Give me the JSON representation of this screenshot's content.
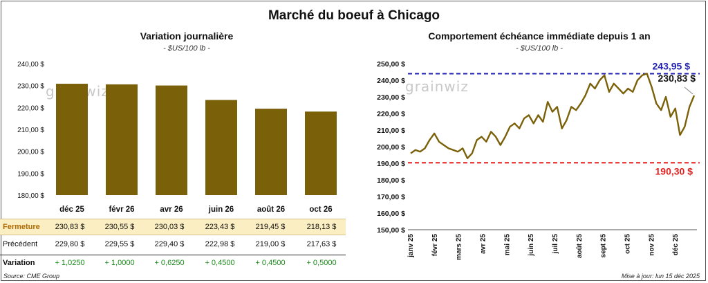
{
  "title": "Marché du boeuf à Chicago",
  "watermark": "grainwiz",
  "left_chart": {
    "subtitle": "Variation journalière",
    "unit": "- $US/100 lb -"
  },
  "right_chart": {
    "subtitle": "Comportement échéance immédiate depuis 1 an",
    "unit": "- $US/100 lb -",
    "high_label": "243,95 $",
    "low_label": "190,30 $",
    "last_label": "230,83 $"
  },
  "table": {
    "rows": [
      {
        "label": "Fermeture",
        "values": [
          "230,83  $",
          "230,55  $",
          "230,03  $",
          "223,43  $",
          "219,45  $",
          "218,13  $"
        ]
      },
      {
        "label": "Précédent",
        "values": [
          "229,80  $",
          "229,55  $",
          "229,40  $",
          "222,98  $",
          "219,00  $",
          "217,63  $"
        ]
      },
      {
        "label": "Variation",
        "values": [
          "+ 1,0250",
          "+ 1,0000",
          "+ 0,6250",
          "+ 0,4500",
          "+ 0,4500",
          "+ 0,5000"
        ]
      }
    ]
  },
  "footer": {
    "source": "Source: CME Group",
    "updated": "Mise à jour: lun 15 déc 2025"
  },
  "colors": {
    "bar": "#7a6008",
    "line": "#7a6008",
    "high": "#2020b0",
    "low": "#e02020",
    "fermeture_bg": "#fbeec3",
    "positive": "#1a8a1a"
  },
  "chart_data": [
    {
      "type": "bar",
      "categories": [
        "déc 25",
        "févr 26",
        "avr 26",
        "juin 26",
        "août 26",
        "oct 26"
      ],
      "values": [
        230.83,
        230.55,
        230.03,
        223.43,
        219.45,
        218.13
      ],
      "ylim": [
        180,
        240
      ],
      "yticks": [
        "180,00 $",
        "190,00 $",
        "200,00 $",
        "210,00 $",
        "220,00 $",
        "230,00 $",
        "240,00 $"
      ],
      "grid": false
    },
    {
      "type": "line",
      "ylim": [
        150,
        250
      ],
      "yticks": [
        "150,00 $",
        "160,00 $",
        "170,00 $",
        "180,00 $",
        "190,00 $",
        "200,00 $",
        "210,00 $",
        "220,00 $",
        "230,00 $",
        "240,00 $",
        "250,00 $"
      ],
      "xticks": [
        "janv 25",
        "févr 25",
        "mars 25",
        "avr 25",
        "mai 25",
        "juin 25",
        "juil 25",
        "août 25",
        "sept 25",
        "oct 25",
        "nov 25",
        "déc 25"
      ],
      "reference_lines": [
        243.95,
        190.3
      ],
      "x": [
        "déc 24",
        "début janv",
        "janv",
        "janv",
        "janv",
        "mi-janv",
        "fin janv",
        "début févr",
        "févr",
        "févr",
        "mi-févr",
        "févr",
        "fin févr",
        "début mars",
        "mars",
        "mi-mars",
        "mars",
        "fin mars",
        "avr",
        "avr",
        "mi-avr",
        "avr",
        "fin avr",
        "début mai",
        "mai",
        "mi-mai",
        "mai",
        "fin mai",
        "début juin",
        "juin",
        "mi-juin",
        "juin",
        "fin juin",
        "début juil",
        "juil",
        "mi-juil",
        "juil",
        "fin juil",
        "début août",
        "août",
        "mi-août",
        "août",
        "fin août",
        "début sept",
        "sept",
        "mi-sept",
        "sept",
        "fin sept",
        "début oct",
        "oct",
        "mi-oct",
        "oct",
        "fin oct",
        "début nov",
        "nov",
        "mi-nov",
        "nov",
        "fin nov",
        "début déc",
        "déc",
        "mi-déc"
      ],
      "values": [
        196,
        198,
        197,
        199,
        204,
        208,
        203,
        201,
        199,
        198,
        197,
        199,
        193,
        196,
        204,
        206,
        203,
        209,
        206,
        201,
        206,
        212,
        214,
        211,
        217,
        219,
        214,
        219,
        215,
        227,
        221,
        224,
        211,
        216,
        224,
        222,
        226,
        231,
        238,
        235,
        240,
        243,
        233,
        238,
        235,
        232,
        235,
        233,
        240,
        243,
        244,
        236,
        226,
        222,
        230,
        218,
        223,
        207,
        212,
        224,
        230.83
      ]
    }
  ]
}
